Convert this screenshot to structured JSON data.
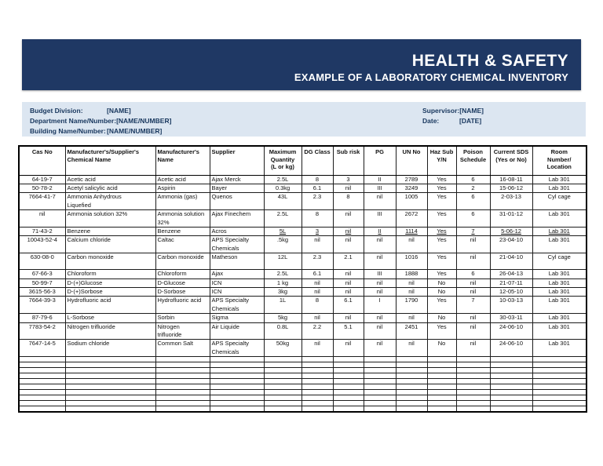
{
  "banner": {
    "title": "HEALTH & SAFETY",
    "subtitle": "EXAMPLE OF A LABORATORY CHEMICAL INVENTORY",
    "bg_color": "#1f3864",
    "text_color": "#ffffff"
  },
  "info_panel": {
    "bg_color": "#dce6f1",
    "left_fields": [
      {
        "label": "Budget Division:",
        "value": "[NAME]"
      },
      {
        "label": "Department Name/Number:",
        "value": "[NAME/NUMBER]"
      },
      {
        "label": "Building Name/Number:",
        "value": "[NAME/NUMBER]"
      }
    ],
    "right_fields": [
      {
        "label": "Supervisor:",
        "value": "[NAME]"
      },
      {
        "label": "Date:",
        "value": "[DATE]"
      }
    ]
  },
  "table": {
    "headers": [
      "Cas No",
      "Manufacturer's/Supplier's\nChemical Name",
      "Manufacturer's\nName",
      "Supplier",
      "Maximum\nQuantity\n(L or kg)",
      "DG Class",
      "Sub risk",
      "PG",
      "UN No",
      "Haz Sub\nY/N",
      "Poison\nSchedule",
      "Current SDS\n(Yes or No)",
      "Room\nNumber/\nLocation"
    ],
    "rows": [
      {
        "cells": [
          "64-19-7",
          "Acetic acid",
          "Acetic acid",
          "Ajax Merck",
          "2.5L",
          "8",
          "3",
          "II",
          "2789",
          "Yes",
          "6",
          "16-08-11",
          "Lab 301"
        ]
      },
      {
        "cells": [
          "50-78-2",
          "Acetyl salicylic acid",
          "Aspirin",
          "Bayer",
          "0.3kg",
          "6.1",
          "nil",
          "III",
          "3249",
          "Yes",
          "2",
          "15-06-12",
          "Lab 301"
        ]
      },
      {
        "cells": [
          "7664-41-7",
          "Ammonia Anhydrous\nLiquefied",
          "Ammonia (gas)",
          "Quenos",
          "43L",
          "2.3",
          "8",
          "nil",
          "1005",
          "Yes",
          "6",
          "2-03-13",
          "Cyl cage"
        ]
      },
      {
        "cells": [
          "nil",
          "Ammonia solution 32%",
          "Ammonia solution\n32%",
          "Ajax Finechem",
          "2.5L",
          "8",
          "nil",
          "III",
          "2672",
          "Yes",
          "6",
          "31-01-12",
          "Lab 301"
        ]
      },
      {
        "cells": [
          "71-43-2",
          "Benzene",
          "Benzene",
          "Acros",
          "5L",
          "3",
          "nil",
          "II",
          "1114",
          "Yes",
          "7",
          "5-06-12",
          "Lab 301"
        ]
      },
      {
        "cells": [
          "10043-52-4",
          "Calcium chloride",
          "Caltac",
          "APS Specialty\nChemicals",
          ".5kg",
          "nil",
          "nil",
          "nil",
          "nil",
          "Yes",
          "nil",
          "23-04-10",
          "Lab 301"
        ]
      },
      {
        "cells": [
          "630-08-0",
          "Carbon monoxide",
          "Carbon monoxide",
          "Matheson",
          "12L",
          "2.3",
          "2.1",
          "nil",
          "1016",
          "Yes",
          "nil",
          "21-04-10",
          "Cyl cage"
        ],
        "tall": true
      },
      {
        "cells": [
          "67-66-3",
          "Chloroform",
          "Chloroform",
          "Ajax",
          "2.5L",
          "6.1",
          "nil",
          "III",
          "1888",
          "Yes",
          "6",
          "26-04-13",
          "Lab 301"
        ]
      },
      {
        "cells": [
          "50-99-7",
          "D-(+)Glucose",
          "D-Glucose",
          "ICN",
          "1 kg",
          "nil",
          "nil",
          "nil",
          "nil",
          "No",
          "nil",
          "21-07-11",
          "Lab 301"
        ]
      },
      {
        "cells": [
          "3615-56-3",
          "D-(+)Sorbose",
          "D-Sorbose",
          "ICN",
          "3kg",
          "nil",
          "nil",
          "nil",
          "nil",
          "No",
          "nil",
          "12-05-10",
          "Lab 301"
        ]
      },
      {
        "cells": [
          "7664-39-3",
          "Hydrofluoric acid",
          "Hydrofluoric acid",
          "APS Specialty\nChemicals",
          "1L",
          "8",
          "6.1",
          "I",
          "1790",
          "Yes",
          "7",
          "10-03-13",
          "Lab 301"
        ]
      },
      {
        "cells": [
          "87-79-6",
          "L-Sorbose",
          "Sorbin",
          "Sigma",
          "5kg",
          "nil",
          "nil",
          "nil",
          "nil",
          "No",
          "nil",
          "30-03-11",
          "Lab 301"
        ]
      },
      {
        "cells": [
          "7783-54-2",
          "Nitrogen trifluoride",
          "Nitrogen\ntrifluoride",
          "Air Liquide",
          "0.8L",
          "2.2",
          "5.1",
          "nil",
          "2451",
          "Yes",
          "nil",
          "24-06-10",
          "Lab 301"
        ]
      },
      {
        "cells": [
          "7647-14-5",
          "Sodium chloride",
          "Common Salt",
          "APS Specialty\nChemicals",
          "50kg",
          "nil",
          "nil",
          "nil",
          "nil",
          "No",
          "nil",
          "24-06-10",
          "Lab 301"
        ]
      }
    ],
    "underline": {
      "row_index": 4,
      "col_indices": [
        4,
        5,
        6,
        7,
        8,
        9,
        10,
        11,
        12
      ]
    },
    "empty_row_count": 10
  }
}
